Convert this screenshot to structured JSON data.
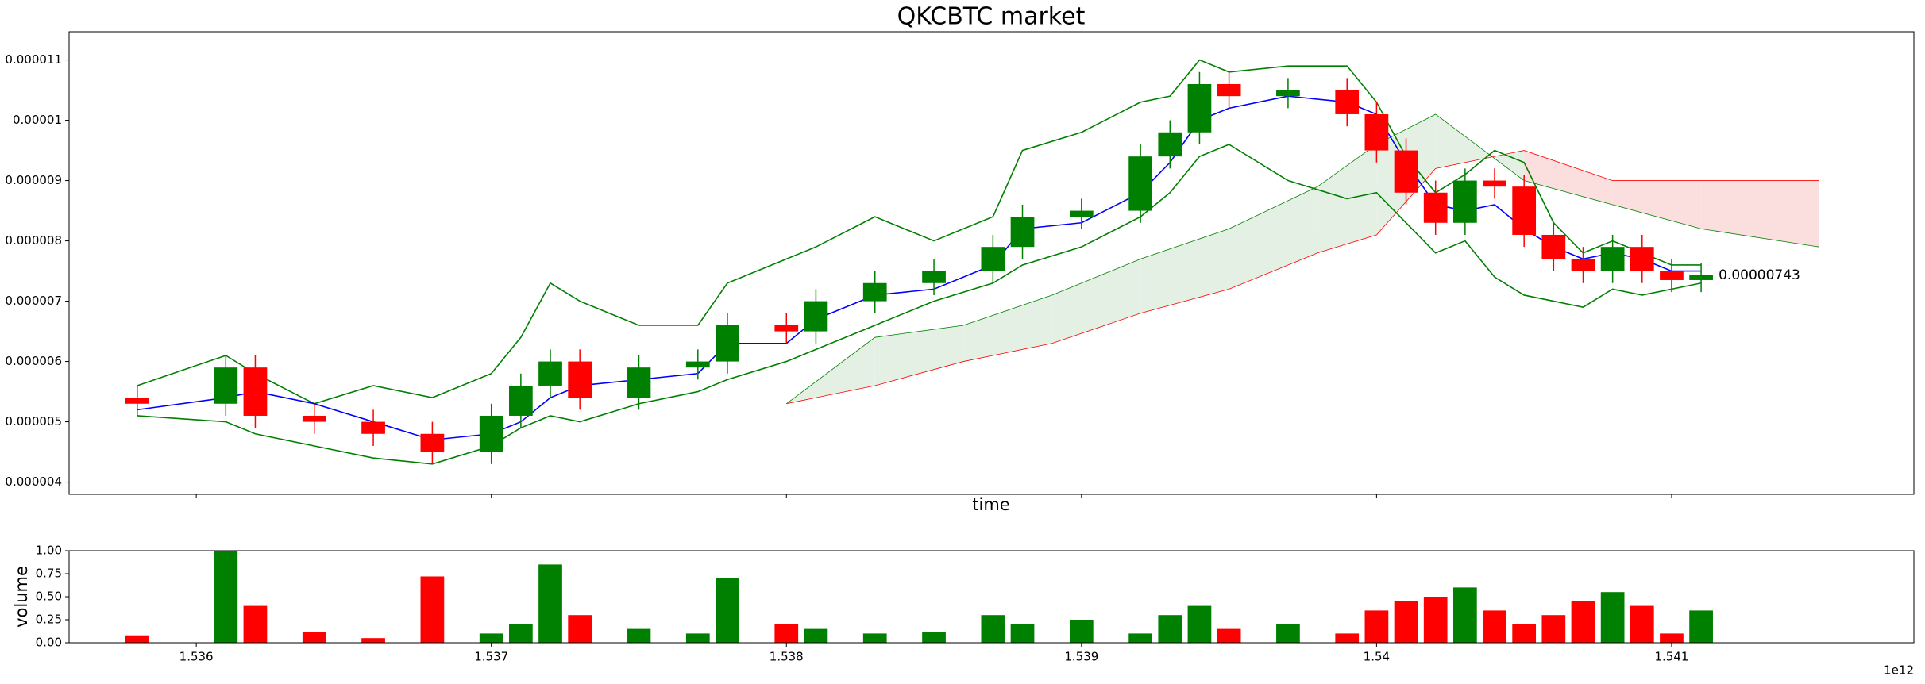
{
  "chart_data": {
    "type": "candlestick",
    "title": "QKCBTC market",
    "xlabel": "time",
    "x_offset_label": "1e12",
    "last_price_label": "0.00000743",
    "xlim": [
      1.535569,
      1.541821
    ],
    "xticks": [
      1.536,
      1.537,
      1.538,
      1.539,
      1.54,
      1.541
    ],
    "ylim": [
      3.797e-06,
      1.1468e-05
    ],
    "yticks": [
      4e-06,
      5e-06,
      6e-06,
      7e-06,
      8e-06,
      9e-06,
      1e-05,
      1.1e-05
    ],
    "up_color": "#008000",
    "down_color": "#ff0000",
    "x": [
      1.5358,
      1.5361,
      1.5362,
      1.5364,
      1.5366,
      1.5368,
      1.537,
      1.5371,
      1.5372,
      1.5373,
      1.5375,
      1.5377,
      1.5378,
      1.538,
      1.5381,
      1.5383,
      1.5385,
      1.5387,
      1.5388,
      1.539,
      1.5392,
      1.5393,
      1.5394,
      1.5395,
      1.5397,
      1.5399,
      1.54,
      1.5401,
      1.5402,
      1.5403,
      1.5404,
      1.5405,
      1.5406,
      1.5407,
      1.5408,
      1.5409,
      1.541,
      1.5411
    ],
    "open": [
      5.4e-06,
      5.3e-06,
      5.9e-06,
      5.1e-06,
      5e-06,
      4.8e-06,
      4.5e-06,
      5.1e-06,
      5.6e-06,
      6e-06,
      5.4e-06,
      5.9e-06,
      6e-06,
      6.6e-06,
      6.5e-06,
      7e-06,
      7.3e-06,
      7.5e-06,
      7.9e-06,
      8.4e-06,
      8.5e-06,
      9.4e-06,
      9.8e-06,
      1.06e-05,
      1.04e-05,
      1.05e-05,
      1.01e-05,
      9.5e-06,
      8.8e-06,
      8.3e-06,
      9e-06,
      8.9e-06,
      8.1e-06,
      7.7e-06,
      7.5e-06,
      7.9e-06,
      7.5e-06,
      7.35e-06
    ],
    "high": [
      5.6e-06,
      6.1e-06,
      6.1e-06,
      5.3e-06,
      5.2e-06,
      5e-06,
      5.3e-06,
      5.8e-06,
      6.2e-06,
      6.2e-06,
      6.1e-06,
      6.2e-06,
      6.8e-06,
      6.8e-06,
      7.2e-06,
      7.5e-06,
      7.7e-06,
      8.1e-06,
      8.6e-06,
      8.7e-06,
      9.6e-06,
      1e-05,
      1.08e-05,
      1.08e-05,
      1.07e-05,
      1.07e-05,
      1.03e-05,
      9.7e-06,
      9e-06,
      9.2e-06,
      9.2e-06,
      9.1e-06,
      8.3e-06,
      7.9e-06,
      8.1e-06,
      8.1e-06,
      7.7e-06,
      7.63e-06
    ],
    "low": [
      5.1e-06,
      5.1e-06,
      4.9e-06,
      4.8e-06,
      4.6e-06,
      4.3e-06,
      4.3e-06,
      4.9e-06,
      5.4e-06,
      5.2e-06,
      5.2e-06,
      5.7e-06,
      5.8e-06,
      6.3e-06,
      6.3e-06,
      6.8e-06,
      7.1e-06,
      7.3e-06,
      7.7e-06,
      8.2e-06,
      8.3e-06,
      9.2e-06,
      9.6e-06,
      1.02e-05,
      1.02e-05,
      9.9e-06,
      9.3e-06,
      8.6e-06,
      8.1e-06,
      8.1e-06,
      8.7e-06,
      7.9e-06,
      7.5e-06,
      7.3e-06,
      7.3e-06,
      7.3e-06,
      7.15e-06,
      7.15e-06
    ],
    "close": [
      5.3e-06,
      5.9e-06,
      5.1e-06,
      5e-06,
      4.8e-06,
      4.5e-06,
      5.1e-06,
      5.6e-06,
      6e-06,
      5.4e-06,
      5.9e-06,
      6e-06,
      6.6e-06,
      6.5e-06,
      7e-06,
      7.3e-06,
      7.5e-06,
      7.9e-06,
      8.4e-06,
      8.5e-06,
      9.4e-06,
      9.8e-06,
      1.06e-05,
      1.04e-05,
      1.05e-05,
      1.01e-05,
      9.5e-06,
      8.8e-06,
      8.3e-06,
      9e-06,
      8.9e-06,
      8.1e-06,
      7.7e-06,
      7.5e-06,
      7.9e-06,
      7.5e-06,
      7.35e-06,
      7.43e-06
    ],
    "lines": [
      {
        "color": "#008000",
        "values": [
          5.6e-06,
          6.1e-06,
          5.8e-06,
          5.3e-06,
          5.6e-06,
          5.4e-06,
          5.8e-06,
          6.4e-06,
          7.3e-06,
          7e-06,
          6.6e-06,
          6.6e-06,
          7.3e-06,
          7.7e-06,
          7.9e-06,
          8.4e-06,
          8e-06,
          8.4e-06,
          9.5e-06,
          9.8e-06,
          1.03e-05,
          1.04e-05,
          1.1e-05,
          1.08e-05,
          1.09e-05,
          1.09e-05,
          1.03e-05,
          9.4e-06,
          8.8e-06,
          9.1e-06,
          9.5e-06,
          9.3e-06,
          8.3e-06,
          7.8e-06,
          8e-06,
          7.8e-06,
          7.6e-06,
          7.6e-06
        ]
      },
      {
        "color": "#008000",
        "values": [
          5.1e-06,
          5e-06,
          4.8e-06,
          4.6e-06,
          4.4e-06,
          4.3e-06,
          4.6e-06,
          4.9e-06,
          5.1e-06,
          5e-06,
          5.3e-06,
          5.5e-06,
          5.7e-06,
          6e-06,
          6.2e-06,
          6.6e-06,
          7e-06,
          7.3e-06,
          7.6e-06,
          7.9e-06,
          8.4e-06,
          8.8e-06,
          9.4e-06,
          9.6e-06,
          9e-06,
          8.7e-06,
          8.8e-06,
          8.3e-06,
          7.8e-06,
          8e-06,
          7.4e-06,
          7.1e-06,
          7e-06,
          6.9e-06,
          7.2e-06,
          7.1e-06,
          7.2e-06,
          7.3e-06
        ]
      },
      {
        "color": "#0000ff",
        "values": [
          5.2e-06,
          5.4e-06,
          5.5e-06,
          5.3e-06,
          5e-06,
          4.7e-06,
          4.8e-06,
          5e-06,
          5.4e-06,
          5.6e-06,
          5.7e-06,
          5.8e-06,
          6.3e-06,
          6.3e-06,
          6.7e-06,
          7.1e-06,
          7.2e-06,
          7.6e-06,
          8.2e-06,
          8.3e-06,
          8.8e-06,
          9.3e-06,
          1e-05,
          1.02e-05,
          1.04e-05,
          1.03e-05,
          1.01e-05,
          9.3e-06,
          8.6e-06,
          8.5e-06,
          8.6e-06,
          8.2e-06,
          7.9e-06,
          7.7e-06,
          7.8e-06,
          7.7e-06,
          7.5e-06,
          7.5e-06
        ]
      }
    ],
    "cloud": {
      "x": [
        1.538,
        1.5383,
        1.5386,
        1.5389,
        1.5392,
        1.5395,
        1.5398,
        1.54,
        1.5402,
        1.5405,
        1.5408,
        1.5411,
        1.5415
      ],
      "span_a": [
        5.3e-06,
        6.4e-06,
        6.6e-06,
        7.1e-06,
        7.7e-06,
        8.2e-06,
        8.9e-06,
        9.6e-06,
        1.01e-05,
        9e-06,
        8.6e-06,
        8.2e-06,
        7.9e-06
      ],
      "span_b": [
        5.3e-06,
        5.6e-06,
        6e-06,
        6.3e-06,
        6.8e-06,
        7.2e-06,
        7.8e-06,
        8.1e-06,
        9.2e-06,
        9.5e-06,
        9e-06,
        9e-06,
        9e-06
      ],
      "up_fill": "#e5f0e5",
      "down_fill": "#fbdfdf"
    },
    "volume": {
      "ylabel": "volume",
      "ylim": [
        0,
        1
      ],
      "yticks": [
        {
          "value": 0,
          "label": "0.00"
        },
        {
          "value": 0.25,
          "label": "0.25"
        },
        {
          "value": 0.5,
          "label": "0.50"
        },
        {
          "value": 0.75,
          "label": "0.75"
        },
        {
          "value": 1,
          "label": "1.00"
        }
      ],
      "values": [
        0.08,
        1.0,
        0.4,
        0.12,
        0.05,
        0.72,
        0.1,
        0.2,
        0.85,
        0.3,
        0.15,
        0.1,
        0.7,
        0.2,
        0.15,
        0.1,
        0.12,
        0.3,
        0.2,
        0.25,
        0.1,
        0.3,
        0.4,
        0.15,
        0.2,
        0.1,
        0.35,
        0.45,
        0.5,
        0.6,
        0.35,
        0.2,
        0.3,
        0.45,
        0.55,
        0.4,
        0.1,
        0.35
      ]
    }
  }
}
